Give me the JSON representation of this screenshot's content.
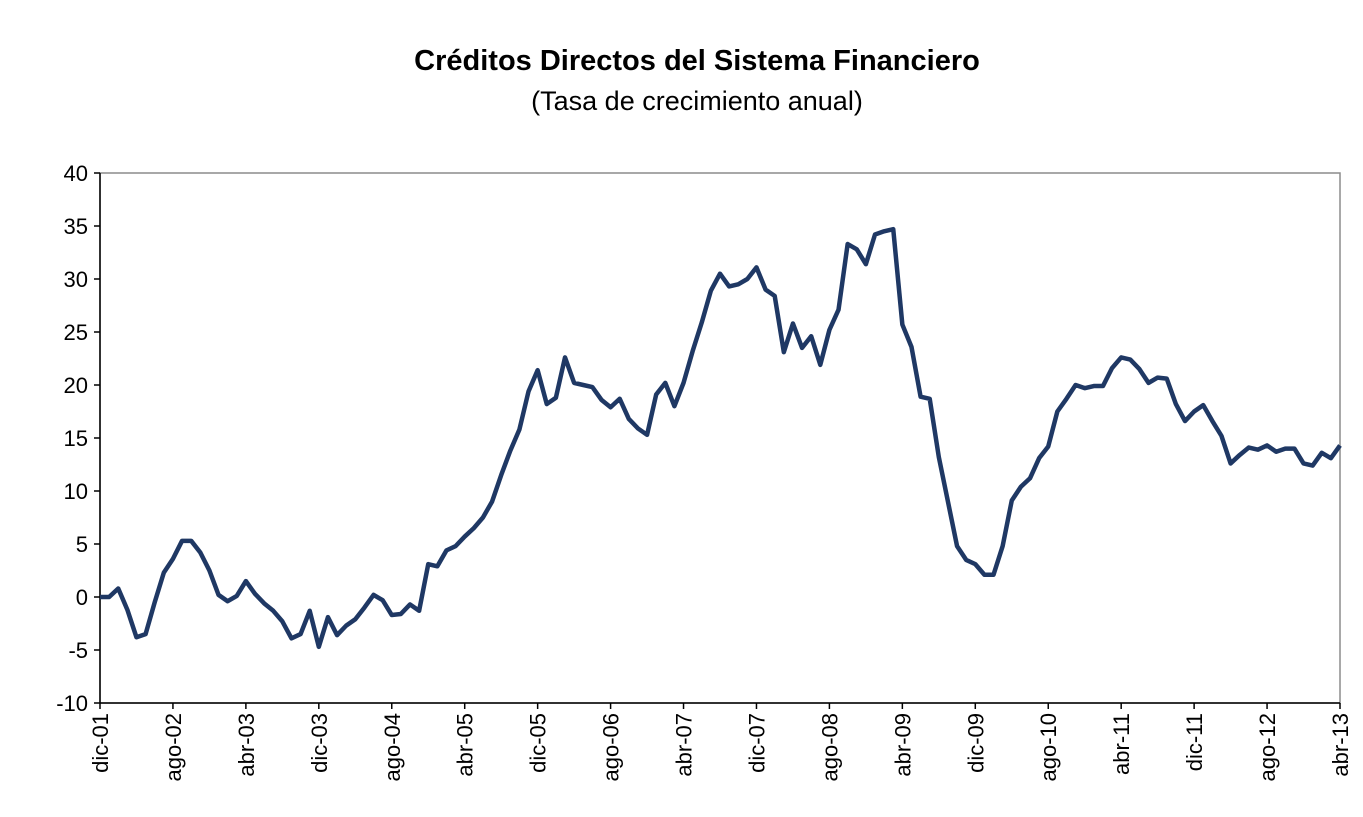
{
  "chart_data": {
    "type": "line",
    "title": "Créditos Directos del Sistema Financiero",
    "subtitle": "(Tasa de crecimiento anual)",
    "categories": [
      "dic-01",
      null,
      null,
      null,
      null,
      null,
      null,
      null,
      "ago-02",
      null,
      null,
      null,
      null,
      null,
      null,
      null,
      "abr-03",
      null,
      null,
      null,
      null,
      null,
      null,
      null,
      "dic-03",
      null,
      null,
      null,
      null,
      null,
      null,
      null,
      "ago-04",
      null,
      null,
      null,
      null,
      null,
      null,
      null,
      "abr-05",
      null,
      null,
      null,
      null,
      null,
      null,
      null,
      "dic-05",
      null,
      null,
      null,
      null,
      null,
      null,
      null,
      "ago-06",
      null,
      null,
      null,
      null,
      null,
      null,
      null,
      "abr-07",
      null,
      null,
      null,
      null,
      null,
      null,
      null,
      "dic-07",
      null,
      null,
      null,
      null,
      null,
      null,
      null,
      "ago-08",
      null,
      null,
      null,
      null,
      null,
      null,
      null,
      "abr-09",
      null,
      null,
      null,
      null,
      null,
      null,
      null,
      "dic-09",
      null,
      null,
      null,
      null,
      null,
      null,
      null,
      "ago-10",
      null,
      null,
      null,
      null,
      null,
      null,
      null,
      "abr-11",
      null,
      null,
      null,
      null,
      null,
      null,
      null,
      "dic-11",
      null,
      null,
      null,
      null,
      null,
      null,
      null,
      "ago-12",
      null,
      null,
      null,
      null,
      null,
      null,
      null,
      "abr-13"
    ],
    "values": [
      0,
      0,
      0.8,
      -1.2,
      -3.8,
      -3.5,
      -0.5,
      2.3,
      3.6,
      5.3,
      5.3,
      4.2,
      2.5,
      0.2,
      -0.4,
      0.1,
      1.5,
      0.3,
      -0.6,
      -1.3,
      -2.3,
      -3.9,
      -3.5,
      -1.3,
      -4.7,
      -1.9,
      -3.6,
      -2.7,
      -2.1,
      -1.0,
      0.2,
      -0.3,
      -1.7,
      -1.6,
      -0.7,
      -1.3,
      3.1,
      2.9,
      4.4,
      4.8,
      5.7,
      6.5,
      7.5,
      9.0,
      11.5,
      13.8,
      15.8,
      19.4,
      21.4,
      18.2,
      18.8,
      22.6,
      20.2,
      20.0,
      19.8,
      18.6,
      17.9,
      18.7,
      16.8,
      15.9,
      15.3,
      19.1,
      20.2,
      18.0,
      20.2,
      23.2,
      25.9,
      28.9,
      30.5,
      29.3,
      29.5,
      30.0,
      31.1,
      29.0,
      28.4,
      23.1,
      25.8,
      23.5,
      24.6,
      21.9,
      25.2,
      27.1,
      33.3,
      32.8,
      31.4,
      34.2,
      34.5,
      34.7,
      25.7,
      23.6,
      18.9,
      18.7,
      13.2,
      9.0,
      4.8,
      3.5,
      3.1,
      2.1,
      2.1,
      4.8,
      9.1,
      10.4,
      11.2,
      13.1,
      14.2,
      17.5,
      18.7,
      20.0,
      19.7,
      19.9,
      19.9,
      21.6,
      22.6,
      22.4,
      21.5,
      20.2,
      20.7,
      20.6,
      18.2,
      16.6,
      17.5,
      18.1,
      16.6,
      15.2,
      12.6,
      13.4,
      14.1,
      13.9,
      14.3,
      13.7,
      14.0,
      14.0,
      12.6,
      12.4,
      13.6,
      13.1,
      14.3
    ],
    "color": "#1f3864",
    "ylim": [
      -10,
      40
    ],
    "yticks": [
      -10,
      -5,
      0,
      5,
      10,
      15,
      20,
      25,
      30,
      35,
      40
    ]
  }
}
